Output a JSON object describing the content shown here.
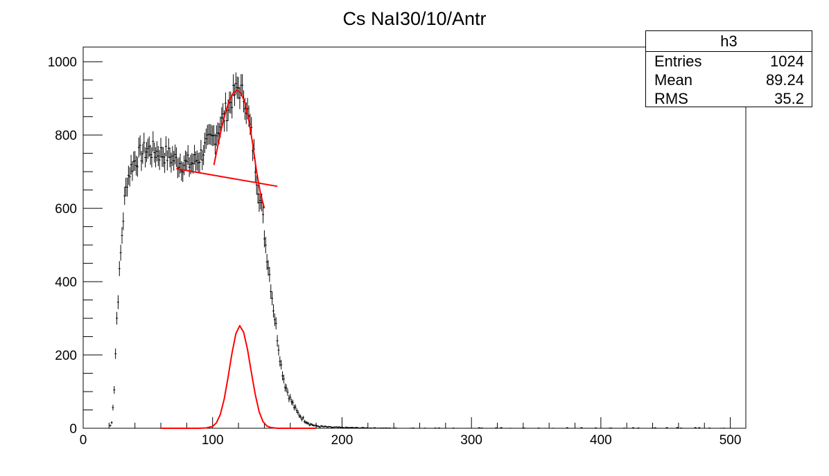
{
  "title": "Cs NaI30/10/Antr",
  "stats": {
    "name": "h3",
    "rows": [
      {
        "label": "Entries",
        "value": "1024"
      },
      {
        "label": "Mean",
        "value": "89.24"
      },
      {
        "label": "RMS",
        "value": "35.2"
      }
    ]
  },
  "chart_data": {
    "type": "scatter",
    "title": "Cs NaI30/10/Antr",
    "xlabel": "",
    "ylabel": "",
    "xlim": [
      0,
      512
    ],
    "ylim": [
      0,
      1040
    ],
    "x_ticks": [
      0,
      100,
      200,
      300,
      400,
      500
    ],
    "y_ticks": [
      0,
      200,
      400,
      600,
      800,
      1000
    ],
    "legend": "none",
    "grid": false,
    "colors": {
      "histogram": "#000000",
      "fit": "#ff0000"
    },
    "histogram": {
      "name": "h3",
      "x": [
        20,
        22,
        24,
        26,
        28,
        30,
        32,
        34,
        36,
        38,
        40,
        45,
        50,
        55,
        60,
        65,
        70,
        75,
        80,
        85,
        90,
        95,
        100,
        105,
        110,
        115,
        120,
        125,
        130,
        135,
        138,
        141,
        144,
        147,
        150,
        153,
        156,
        160,
        165,
        170,
        175,
        180,
        190,
        200,
        220,
        250,
        300,
        350,
        400,
        450,
        500
      ],
      "y": [
        0,
        15,
        110,
        300,
        420,
        530,
        620,
        680,
        700,
        720,
        730,
        750,
        760,
        755,
        750,
        745,
        735,
        725,
        720,
        725,
        740,
        770,
        790,
        820,
        860,
        900,
        930,
        900,
        800,
        660,
        600,
        500,
        420,
        330,
        250,
        170,
        120,
        80,
        45,
        25,
        12,
        6,
        3,
        2,
        1,
        0,
        0,
        0,
        0,
        0,
        0
      ]
    },
    "fit_background": {
      "x": [
        72,
        150
      ],
      "y": [
        708,
        660
      ]
    },
    "fit_peak": {
      "x": [
        101,
        104,
        107,
        110,
        113,
        116,
        119,
        122,
        125,
        128,
        131,
        134,
        137,
        140
      ],
      "y": [
        718,
        770,
        820,
        862,
        895,
        915,
        922,
        914,
        888,
        840,
        775,
        700,
        640,
        600
      ]
    },
    "fit_gauss": {
      "x": [
        60,
        90,
        95,
        100,
        103,
        106,
        109,
        112,
        115,
        118,
        121,
        124,
        127,
        130,
        133,
        136,
        139,
        142,
        145,
        150,
        180
      ],
      "y": [
        0,
        0,
        1,
        5,
        15,
        38,
        80,
        140,
        205,
        258,
        280,
        262,
        215,
        152,
        92,
        45,
        18,
        6,
        2,
        0,
        0
      ]
    }
  }
}
